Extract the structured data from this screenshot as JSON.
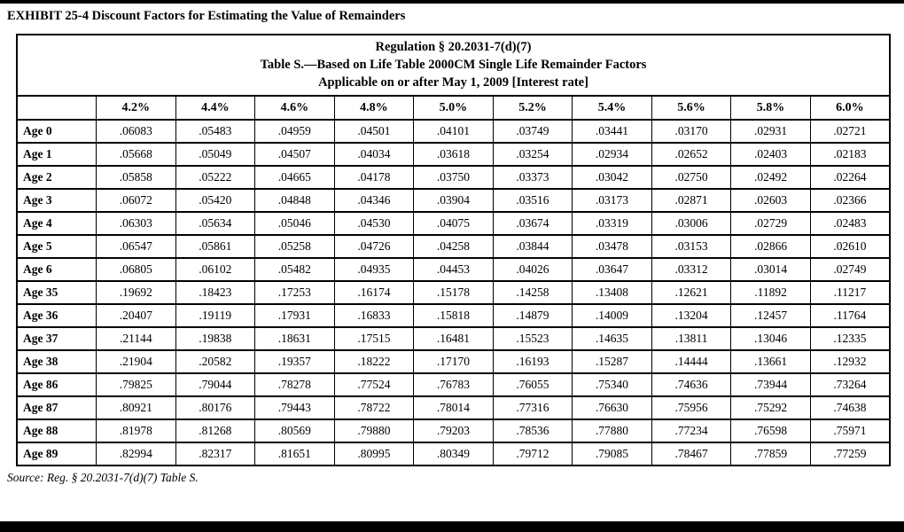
{
  "page": {
    "exhibit_title": "EXHIBIT 25-4 Discount Factors for Estimating the Value of Remainders",
    "source_note": "Source: Reg. § 20.2031-7(d)(7) Table S."
  },
  "table": {
    "caption_lines": [
      "Regulation § 20.2031-7(d)(7)",
      "Table S.—Based on Life Table 2000CM Single Life Remainder Factors",
      "Applicable on or after May 1, 2009 [Interest rate]"
    ],
    "columns": [
      "4.2%",
      "4.4%",
      "4.6%",
      "4.8%",
      "5.0%",
      "5.2%",
      "5.4%",
      "5.6%",
      "5.8%",
      "6.0%"
    ],
    "rows": [
      {
        "label": "Age 0",
        "values": [
          ".06083",
          ".05483",
          ".04959",
          ".04501",
          ".04101",
          ".03749",
          ".03441",
          ".03170",
          ".02931",
          ".02721"
        ]
      },
      {
        "label": "Age 1",
        "values": [
          ".05668",
          ".05049",
          ".04507",
          ".04034",
          ".03618",
          ".03254",
          ".02934",
          ".02652",
          ".02403",
          ".02183"
        ]
      },
      {
        "label": "Age 2",
        "values": [
          ".05858",
          ".05222",
          ".04665",
          ".04178",
          ".03750",
          ".03373",
          ".03042",
          ".02750",
          ".02492",
          ".02264"
        ]
      },
      {
        "label": "Age 3",
        "values": [
          ".06072",
          ".05420",
          ".04848",
          ".04346",
          ".03904",
          ".03516",
          ".03173",
          ".02871",
          ".02603",
          ".02366"
        ]
      },
      {
        "label": "Age 4",
        "values": [
          ".06303",
          ".05634",
          ".05046",
          ".04530",
          ".04075",
          ".03674",
          ".03319",
          ".03006",
          ".02729",
          ".02483"
        ]
      },
      {
        "label": "Age 5",
        "values": [
          ".06547",
          ".05861",
          ".05258",
          ".04726",
          ".04258",
          ".03844",
          ".03478",
          ".03153",
          ".02866",
          ".02610"
        ]
      },
      {
        "label": "Age 6",
        "values": [
          ".06805",
          ".06102",
          ".05482",
          ".04935",
          ".04453",
          ".04026",
          ".03647",
          ".03312",
          ".03014",
          ".02749"
        ]
      },
      {
        "label": "Age 35",
        "values": [
          ".19692",
          ".18423",
          ".17253",
          ".16174",
          ".15178",
          ".14258",
          ".13408",
          ".12621",
          ".11892",
          ".11217"
        ]
      },
      {
        "label": "Age 36",
        "values": [
          ".20407",
          ".19119",
          ".17931",
          ".16833",
          ".15818",
          ".14879",
          ".14009",
          ".13204",
          ".12457",
          ".11764"
        ]
      },
      {
        "label": "Age 37",
        "values": [
          ".21144",
          ".19838",
          ".18631",
          ".17515",
          ".16481",
          ".15523",
          ".14635",
          ".13811",
          ".13046",
          ".12335"
        ]
      },
      {
        "label": "Age 38",
        "values": [
          ".21904",
          ".20582",
          ".19357",
          ".18222",
          ".17170",
          ".16193",
          ".15287",
          ".14444",
          ".13661",
          ".12932"
        ]
      },
      {
        "label": "Age 86",
        "values": [
          ".79825",
          ".79044",
          ".78278",
          ".77524",
          ".76783",
          ".76055",
          ".75340",
          ".74636",
          ".73944",
          ".73264"
        ]
      },
      {
        "label": "Age 87",
        "values": [
          ".80921",
          ".80176",
          ".79443",
          ".78722",
          ".78014",
          ".77316",
          ".76630",
          ".75956",
          ".75292",
          ".74638"
        ]
      },
      {
        "label": "Age 88",
        "values": [
          ".81978",
          ".81268",
          ".80569",
          ".79880",
          ".79203",
          ".78536",
          ".77880",
          ".77234",
          ".76598",
          ".75971"
        ]
      },
      {
        "label": "Age 89",
        "values": [
          ".82994",
          ".82317",
          ".81651",
          ".80995",
          ".80349",
          ".79712",
          ".79085",
          ".78467",
          ".77859",
          ".77259"
        ]
      }
    ]
  },
  "colors": {
    "text": "#000000",
    "background": "#ffffff",
    "border": "#000000",
    "edge_bar": "#000000"
  }
}
